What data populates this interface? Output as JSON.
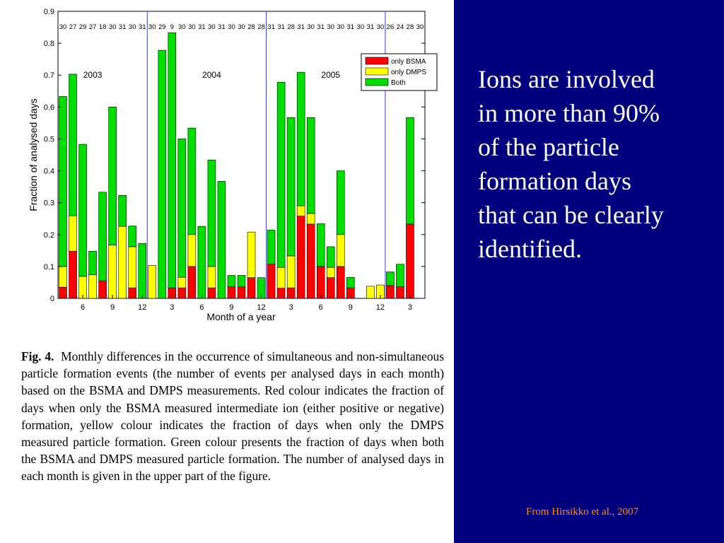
{
  "slide": {
    "main_text": "Ions are involved\nin more than 90%\nof the particle\nformation days\nthat can be clearly\nidentified.",
    "credit": "From Hirsikko et al., 2007",
    "caption_label": "Fig. 4.",
    "caption_text": "Monthly differences in the occurrence of simultaneous and non-simultaneous particle formation events (the number of events per analysed days in each month) based on the BSMA and DMPS measurements. Red colour indicates the fraction of days when only the BSMA measured intermediate ion (either positive or negative) formation, yellow colour indicates the fraction of days when only the DMPS measured particle formation. Green colour presents the fraction of days when both the BSMA and DMPS measured particle formation. The number of analysed days in each month is given in the upper part of the figure.",
    "colors": {
      "background_right": "#00007f",
      "main_text": "#ffffff",
      "credit": "#ff8c1a"
    }
  },
  "chart_data": {
    "type": "bar",
    "stacked": true,
    "xlabel": "Month of a year",
    "ylabel": "Fraction of analysed days",
    "ylim": [
      0,
      0.9
    ],
    "yticks": [
      "0",
      "0.1",
      "0.2",
      "0.3",
      "0.4",
      "0.5",
      "0.6",
      "0.7",
      "0.8",
      "0.9"
    ],
    "xticks": [
      {
        "index": 2,
        "label": "6"
      },
      {
        "index": 5,
        "label": "9"
      },
      {
        "index": 8,
        "label": "12"
      },
      {
        "index": 11,
        "label": "3"
      },
      {
        "index": 14,
        "label": "6"
      },
      {
        "index": 17,
        "label": "9"
      },
      {
        "index": 20,
        "label": "12"
      },
      {
        "index": 23,
        "label": "3"
      },
      {
        "index": 26,
        "label": "6"
      },
      {
        "index": 29,
        "label": "9"
      },
      {
        "index": 32,
        "label": "12"
      },
      {
        "index": 35,
        "label": "3"
      }
    ],
    "analysed_days": [
      "30",
      "27",
      "29",
      "27",
      "18",
      "30",
      "31",
      "30",
      "31",
      "30",
      "29",
      "9",
      "30",
      "30",
      "31",
      "30",
      "31",
      "30",
      "30",
      "28",
      "28",
      "31",
      "31",
      "28",
      "31",
      "30",
      "31",
      "30",
      "30",
      "31",
      "30",
      "31",
      "30",
      "26",
      "24",
      "28",
      "30"
    ],
    "year_labels": [
      {
        "text": "2003",
        "at_index": 3
      },
      {
        "text": "2004",
        "at_index": 15
      },
      {
        "text": "2005",
        "at_index": 27
      }
    ],
    "year_dividers_after_index": [
      8,
      20,
      32
    ],
    "grid": false,
    "legend_position": "top-right",
    "series": [
      {
        "name": "only BSMA",
        "color": "#ff0000",
        "values": [
          0.035,
          0.148,
          0,
          0,
          0.055,
          0,
          0,
          0.033,
          0,
          0,
          0,
          0.033,
          0.033,
          0.1,
          0,
          0.033,
          0,
          0.036,
          0.036,
          0.065,
          0,
          0.107,
          0.032,
          0.033,
          0.258,
          0.233,
          0.1,
          0.065,
          0.1,
          0.033,
          0,
          0,
          0,
          0.04,
          0.036,
          0.233,
          0
        ]
      },
      {
        "name": "only DMPS",
        "color": "#ffff00",
        "values": [
          0.065,
          0.111,
          0.069,
          0.074,
          0,
          0.167,
          0.226,
          0.129,
          0,
          0.103,
          0,
          0,
          0.033,
          0.1,
          0,
          0.067,
          0,
          0,
          0,
          0.143,
          0,
          0,
          0.065,
          0.1,
          0.032,
          0.033,
          0,
          0.032,
          0.1,
          0,
          0,
          0.038,
          0.042,
          0,
          0,
          0,
          0
        ]
      },
      {
        "name": "Both",
        "color": "#00dd00",
        "values": [
          0.533,
          0.444,
          0.414,
          0.074,
          0.278,
          0.433,
          0.097,
          0.065,
          0.172,
          0,
          0.778,
          0.8,
          0.434,
          0.334,
          0.226,
          0.334,
          0.367,
          0.036,
          0.036,
          0,
          0.065,
          0.107,
          0.581,
          0.434,
          0.419,
          0.301,
          0.134,
          0.065,
          0.2,
          0.033,
          0,
          0,
          0,
          0.043,
          0.071,
          0.334,
          0
        ]
      }
    ]
  }
}
